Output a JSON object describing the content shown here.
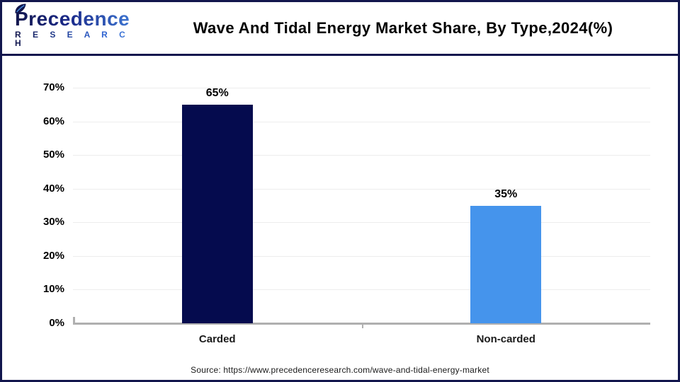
{
  "header": {
    "logo_line1": "Precedence",
    "logo_line2": "R E S E A R C H",
    "title": "Wave And Tidal Energy Market Share, By Type,2024(%)"
  },
  "chart_data": {
    "type": "bar",
    "title": "Wave And Tidal Energy Market Share, By Type,2024(%)",
    "categories": [
      "Carded",
      "Non-carded"
    ],
    "values": [
      65,
      35
    ],
    "value_labels": [
      "65%",
      "35%"
    ],
    "bar_colors": [
      "#050b4e",
      "#4594ec"
    ],
    "xlabel": "",
    "ylabel": "",
    "ylim": [
      0,
      70
    ],
    "ytick_step": 10,
    "ytick_labels": [
      "0%",
      "10%",
      "20%",
      "30%",
      "40%",
      "50%",
      "60%",
      "70%"
    ],
    "grid": true,
    "legend": "none"
  },
  "footer": {
    "source": "Source: https://www.precedenceresearch.com/wave-and-tidal-energy-market"
  },
  "colors": {
    "frame_navy": "#12164d",
    "bar_carded": "#050b4e",
    "bar_non_carded": "#4594ec",
    "axis_gray": "#b0b0b0",
    "gridline_gray": "#ededed"
  }
}
